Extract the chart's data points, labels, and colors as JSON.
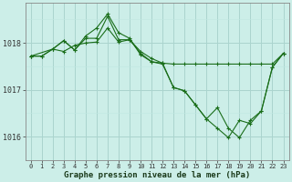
{
  "title": "Graphe pression niveau de la mer (hPa)",
  "bg_color": "#cceee8",
  "grid_color_major": "#aad4ce",
  "grid_color_minor": "#c0e8e2",
  "line_color": "#1a6e1a",
  "xlim": [
    -0.5,
    23.5
  ],
  "ylim": [
    1015.5,
    1018.85
  ],
  "yticks": [
    1016,
    1017,
    1018
  ],
  "xticks": [
    0,
    1,
    2,
    3,
    4,
    5,
    6,
    7,
    8,
    9,
    10,
    11,
    12,
    13,
    14,
    15,
    16,
    17,
    18,
    19,
    20,
    21,
    22,
    23
  ],
  "line1_x": [
    0,
    1,
    2,
    3,
    4,
    5,
    6,
    7,
    8,
    9,
    10,
    11,
    12,
    13,
    14,
    15,
    16,
    17,
    18,
    19,
    20,
    21,
    22,
    23
  ],
  "line1_y": [
    1017.72,
    1017.72,
    1017.87,
    1017.82,
    1017.95,
    1018.0,
    1018.02,
    1018.32,
    1018.02,
    1018.07,
    1017.82,
    1017.67,
    1017.57,
    1017.55,
    1017.55,
    1017.55,
    1017.55,
    1017.55,
    1017.55,
    1017.55,
    1017.55,
    1017.55,
    1017.55,
    1017.78
  ],
  "line2_x": [
    0,
    1,
    2,
    3,
    4,
    5,
    6,
    7,
    8,
    9,
    10,
    11,
    12,
    13,
    14,
    15,
    16,
    17,
    18,
    19,
    20,
    21,
    22,
    23
  ],
  "line2_y": [
    1017.72,
    1017.72,
    1017.87,
    1018.05,
    1017.85,
    1018.15,
    1018.32,
    1018.62,
    1018.22,
    1018.1,
    1017.75,
    1017.6,
    1017.55,
    1017.05,
    1016.98,
    1016.68,
    1016.38,
    1016.18,
    1015.98,
    1016.35,
    1016.28,
    1016.55,
    1017.48,
    1017.78
  ],
  "line3_x": [
    0,
    2,
    3,
    4,
    5,
    6,
    7,
    8,
    9,
    10,
    11,
    12,
    13,
    14,
    15,
    16,
    17,
    18,
    19,
    20,
    21,
    22,
    23
  ],
  "line3_y": [
    1017.72,
    1017.87,
    1018.05,
    1017.85,
    1018.1,
    1018.1,
    1018.57,
    1018.07,
    1018.07,
    1017.78,
    1017.6,
    1017.57,
    1017.05,
    1016.98,
    1016.68,
    1016.38,
    1016.62,
    1016.18,
    1015.98,
    1016.35,
    1016.55,
    1017.48,
    1017.78
  ]
}
